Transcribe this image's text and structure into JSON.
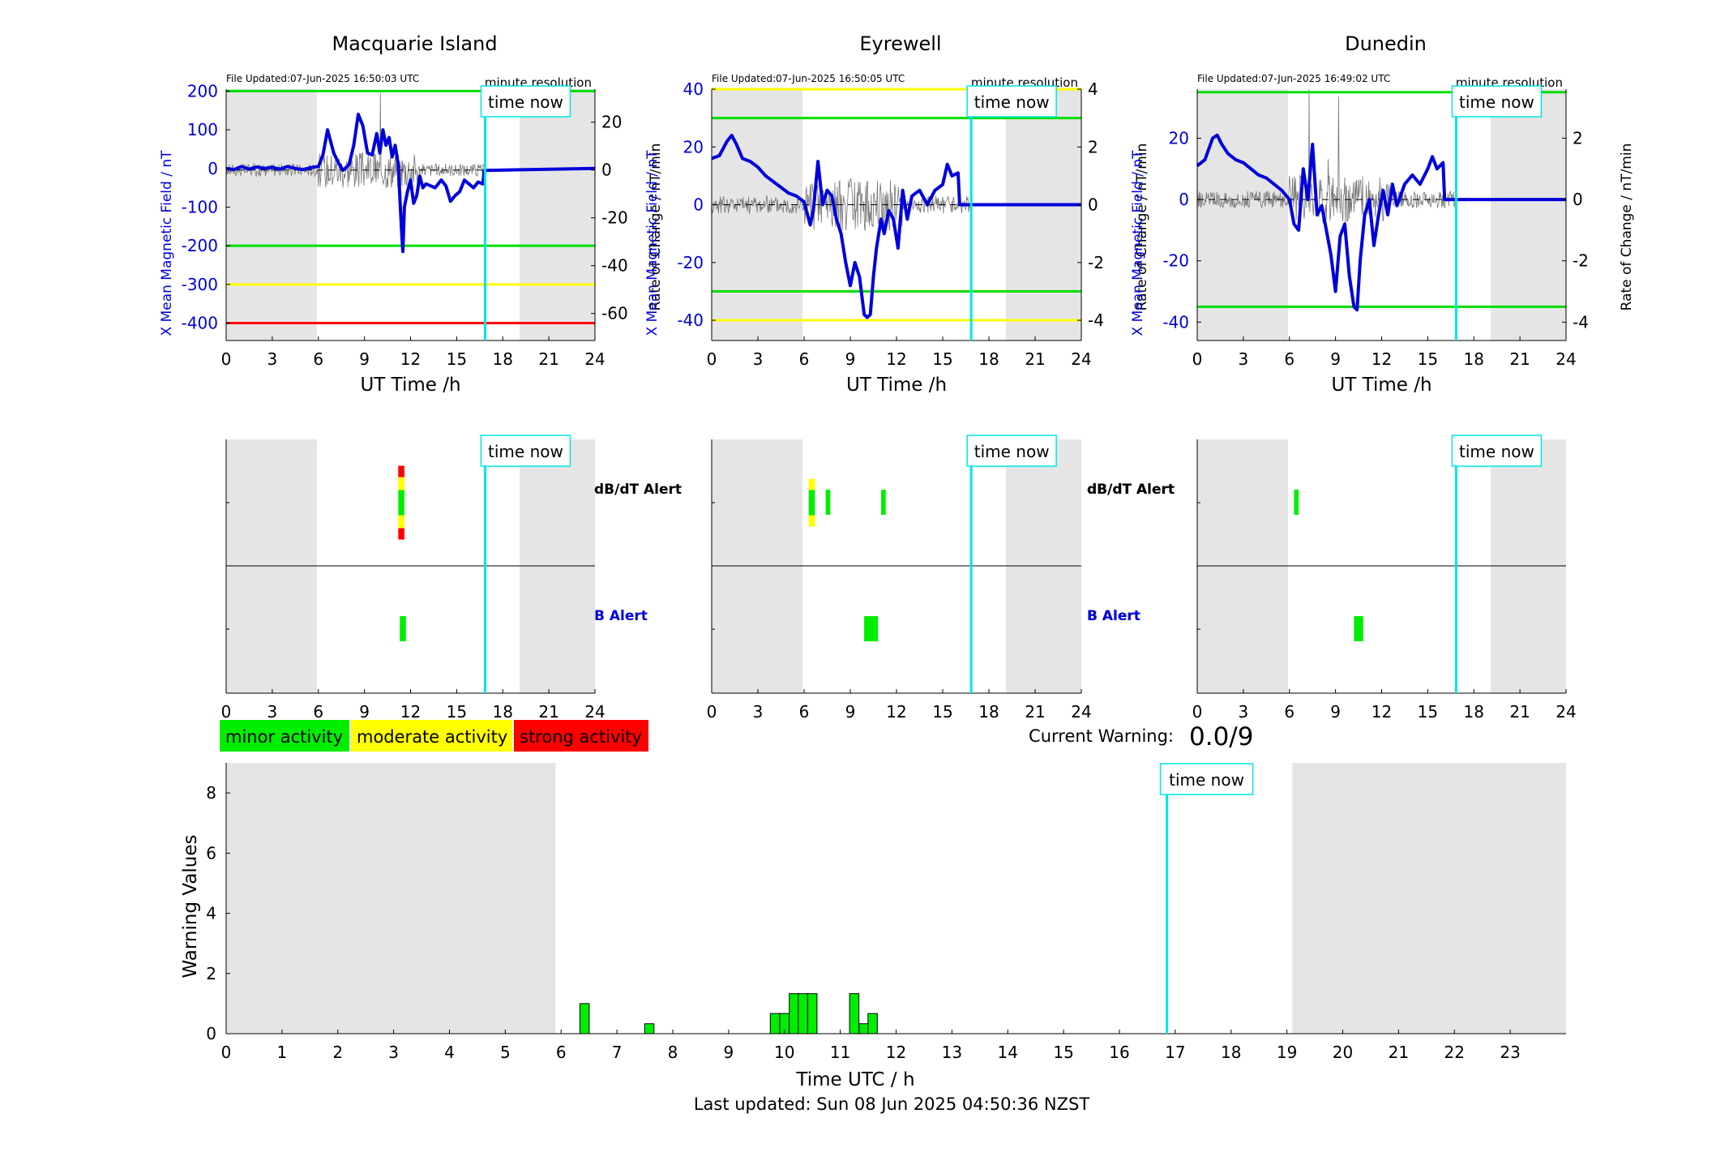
{
  "stations": [
    {
      "name": "Macquarie Island",
      "file_updated": "File Updated:07-Jun-2025 16:50:03 UTC",
      "resolution": "minute resolution",
      "ylabel_left": "X Mean Magnetic Field / nT",
      "ylabel_right": "Rate of Change / nT/min",
      "xlabel": "UT Time /h",
      "ylim": [
        -445,
        205
      ],
      "y_ticks": [
        200,
        100,
        0,
        -100,
        -200,
        -300,
        -400
      ],
      "rate_ylim": [
        -71.3,
        33.8
      ],
      "rate_ticks": [
        20,
        0,
        -20,
        -40,
        -60
      ],
      "thresholds": [
        {
          "value": 200,
          "color": "#00dd00"
        },
        {
          "value": -200,
          "color": "#00dd00"
        },
        {
          "value": -300,
          "color": "#ffff00"
        },
        {
          "value": -400,
          "color": "#ff0000"
        }
      ],
      "field_x": [
        0,
        0.5,
        1,
        1.5,
        2,
        2.5,
        3,
        3.5,
        4,
        4.5,
        5,
        5.5,
        6,
        6.3,
        6.6,
        7,
        7.3,
        7.6,
        8,
        8.3,
        8.6,
        8.9,
        9.2,
        9.5,
        9.8,
        10,
        10.2,
        10.4,
        10.6,
        10.8,
        11,
        11.2,
        11.4,
        11.5,
        11.6,
        11.8,
        12,
        12.2,
        12.4,
        12.6,
        12.8,
        13,
        13.3,
        13.6,
        14,
        14.3,
        14.6,
        14.9,
        15.2,
        15.5,
        15.8,
        16.1,
        16.4,
        16.7,
        16.8,
        24
      ],
      "field_y": [
        0,
        -3,
        5,
        -2,
        4,
        0,
        3,
        -2,
        5,
        0,
        -3,
        2,
        5,
        35,
        100,
        40,
        15,
        -5,
        10,
        60,
        140,
        110,
        40,
        35,
        90,
        40,
        100,
        60,
        80,
        30,
        60,
        10,
        -150,
        -215,
        -100,
        -60,
        -30,
        -90,
        -70,
        -20,
        -50,
        -40,
        -45,
        -50,
        -30,
        -45,
        -85,
        -70,
        -60,
        -30,
        -40,
        -50,
        -35,
        -40,
        -5,
        0
      ],
      "alert_db": [
        {
          "x0": 11.2,
          "x1": 11.6,
          "levels": [
            "red",
            "yellow",
            "green",
            "yellow",
            "red"
          ]
        }
      ],
      "alert_b": [
        {
          "x0": 11.3,
          "x1": 11.7
        }
      ]
    },
    {
      "name": "Eyrewell",
      "file_updated": "File Updated:07-Jun-2025 16:50:05 UTC",
      "resolution": "minute resolution",
      "ylabel_left": "X Mean Magnetic Field / nT",
      "ylabel_right": "Rate of Change / nT/min",
      "xlabel": "UT Time /h",
      "ylim": [
        -47,
        40
      ],
      "y_ticks": [
        40,
        20,
        0,
        -20,
        -40
      ],
      "rate_ylim": [
        -4.7,
        4.0
      ],
      "rate_ticks": [
        4,
        2,
        0,
        -2,
        -4
      ],
      "thresholds": [
        {
          "value": 40,
          "color": "#ffff00"
        },
        {
          "value": 30,
          "color": "#00dd00"
        },
        {
          "value": -30,
          "color": "#00dd00"
        },
        {
          "value": -40,
          "color": "#ffff00"
        }
      ],
      "field_x": [
        0,
        0.5,
        1,
        1.3,
        1.6,
        2,
        2.5,
        3,
        3.5,
        4,
        4.5,
        5,
        5.5,
        6,
        6.2,
        6.4,
        6.6,
        6.9,
        7.2,
        7.5,
        7.8,
        8.1,
        8.4,
        8.7,
        9,
        9.3,
        9.6,
        9.9,
        10.1,
        10.3,
        10.5,
        10.7,
        11,
        11.2,
        11.5,
        11.8,
        12.1,
        12.4,
        12.7,
        13,
        13.5,
        14,
        14.5,
        15,
        15.3,
        15.6,
        16,
        16.1,
        24
      ],
      "field_y": [
        16,
        17,
        22,
        24,
        21,
        16,
        15,
        13,
        10,
        8,
        6,
        4,
        3,
        1,
        -3,
        -7,
        -2,
        15,
        0,
        5,
        3,
        -5,
        -10,
        -20,
        -28,
        -20,
        -25,
        -38,
        -39,
        -38,
        -25,
        -15,
        -5,
        -10,
        -2,
        -5,
        -15,
        5,
        -5,
        3,
        5,
        0,
        5,
        7,
        14,
        10,
        11,
        0,
        0
      ],
      "alert_db": [
        {
          "x0": 6.3,
          "x1": 6.7,
          "levels": [
            "yellow",
            "green",
            "yellow"
          ]
        },
        {
          "x0": 7.4,
          "x1": 7.7,
          "levels": [
            "green"
          ]
        },
        {
          "x0": 11.0,
          "x1": 11.3,
          "levels": [
            "green"
          ]
        }
      ],
      "alert_b": [
        {
          "x0": 9.9,
          "x1": 10.8
        }
      ]
    },
    {
      "name": "Dunedin",
      "file_updated": "File Updated:07-Jun-2025 16:49:02 UTC",
      "resolution": "minute resolution",
      "ylabel_left": "X Mean Magnetic Field / nT",
      "ylabel_right": "Rate of Change / nT/min",
      "xlabel": "UT Time /h",
      "ylim": [
        -46,
        36
      ],
      "y_ticks": [
        20,
        0,
        -20,
        -40
      ],
      "rate_ylim": [
        -4.6,
        3.6
      ],
      "rate_ticks": [
        2,
        0,
        -2,
        -4
      ],
      "thresholds": [
        {
          "value": 35,
          "color": "#00dd00"
        },
        {
          "value": -35,
          "color": "#00dd00"
        }
      ],
      "field_x": [
        0,
        0.5,
        1,
        1.3,
        1.6,
        2,
        2.5,
        3,
        3.5,
        4,
        4.5,
        5,
        5.5,
        6,
        6.3,
        6.6,
        6.9,
        7.2,
        7.5,
        7.8,
        8.1,
        8.4,
        8.7,
        9,
        9.3,
        9.6,
        9.9,
        10.2,
        10.4,
        10.6,
        10.9,
        11.2,
        11.5,
        11.8,
        12.1,
        12.4,
        12.7,
        13,
        13.5,
        14,
        14.5,
        15,
        15.3,
        15.6,
        16,
        16.1,
        24
      ],
      "field_y": [
        11,
        13,
        20,
        21,
        18,
        15,
        13,
        12,
        10,
        8,
        7,
        5,
        3,
        0,
        -8,
        -10,
        10,
        0,
        18,
        -5,
        -2,
        -10,
        -18,
        -30,
        -12,
        -8,
        -25,
        -35,
        -36,
        -20,
        -5,
        0,
        -15,
        -5,
        3,
        -5,
        5,
        -2,
        5,
        8,
        5,
        10,
        14,
        10,
        12,
        0,
        0
      ],
      "alert_db": [
        {
          "x0": 6.3,
          "x1": 6.6,
          "levels": [
            "green"
          ]
        }
      ],
      "alert_b": [
        {
          "x0": 10.2,
          "x1": 10.8
        }
      ]
    }
  ],
  "shared": {
    "x_ticks": [
      0,
      3,
      6,
      9,
      12,
      15,
      18,
      21,
      24
    ],
    "time_now_label": "time now",
    "time_now": 16.85,
    "night_ranges": [
      [
        0,
        5.9
      ],
      [
        19.1,
        24
      ]
    ],
    "db_alert_label": "dB/dT Alert",
    "b_alert_label": "B Alert"
  },
  "legend": [
    {
      "label": "minor activity",
      "color": "#00ee00"
    },
    {
      "label": "moderate activity",
      "color": "#ffff00"
    },
    {
      "label": "strong activity",
      "color": "#ff0000"
    }
  ],
  "current_warning": {
    "label": "Current Warning:",
    "value": "0.0/9"
  },
  "chart_data": {
    "type": "bar",
    "xlabel": "Time UTC / h",
    "ylabel": "Warning Values",
    "xlim": [
      0,
      24
    ],
    "ylim": [
      0,
      9
    ],
    "x_ticks": [
      0,
      1,
      2,
      3,
      4,
      5,
      6,
      7,
      8,
      9,
      10,
      11,
      12,
      13,
      14,
      15,
      16,
      17,
      18,
      19,
      20,
      21,
      22,
      23
    ],
    "y_ticks": [
      0,
      2,
      4,
      6,
      8
    ],
    "bin_width_h": 0.1667,
    "x": [
      6.42,
      7.58,
      9.83,
      10.0,
      10.17,
      10.33,
      10.5,
      11.25,
      11.42,
      11.58
    ],
    "values": [
      1.0,
      0.33,
      0.67,
      0.67,
      1.33,
      1.33,
      1.33,
      1.33,
      0.33,
      0.67
    ],
    "bar_color": "#00ee00"
  },
  "footer": "Last updated: Sun 08 Jun 2025 04:50:36 NZST"
}
